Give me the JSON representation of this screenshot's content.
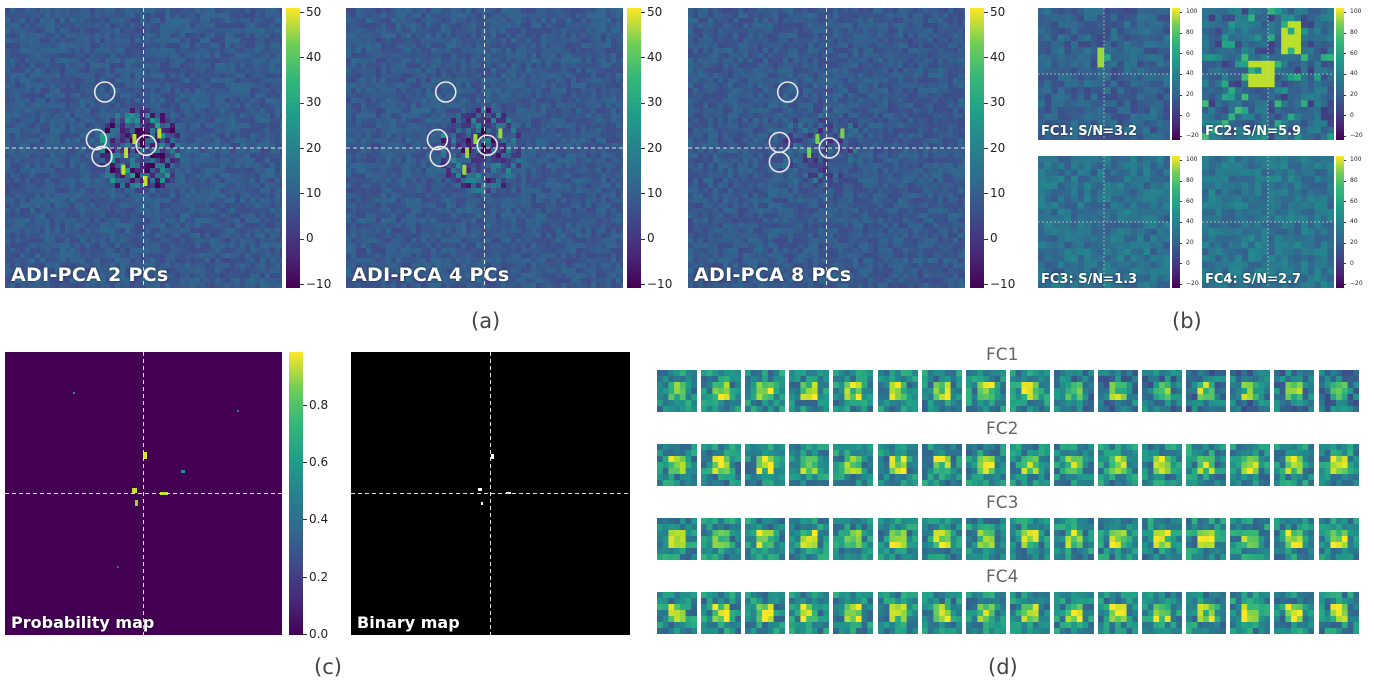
{
  "figure": {
    "panels_a": [
      {
        "label": "ADI-PCA 2 PCs",
        "circles": [
          [
            0.36,
            0.3
          ],
          [
            0.33,
            0.47
          ],
          [
            0.35,
            0.53
          ],
          [
            0.51,
            0.49
          ]
        ]
      },
      {
        "label": "ADI-PCA 4 PCs",
        "circles": [
          [
            0.36,
            0.3
          ],
          [
            0.33,
            0.47
          ],
          [
            0.34,
            0.53
          ],
          [
            0.51,
            0.49
          ]
        ]
      },
      {
        "label": "ADI-PCA 8 PCs",
        "circles": [
          [
            0.36,
            0.3
          ],
          [
            0.33,
            0.48
          ],
          [
            0.33,
            0.55
          ],
          [
            0.51,
            0.5
          ]
        ]
      }
    ],
    "colorbar_a": {
      "ticks": [
        "50",
        "40",
        "30",
        "20",
        "10",
        "0",
        "−10"
      ]
    },
    "panels_b": [
      {
        "label": "FC1: S/N=3.2"
      },
      {
        "label": "FC2: S/N=5.9"
      },
      {
        "label": "FC3: S/N=1.3"
      },
      {
        "label": "FC4: S/N=2.7"
      }
    ],
    "colorbar_b": {
      "ticks": [
        "100",
        "80",
        "60",
        "40",
        "20",
        "0",
        "−20"
      ]
    },
    "panel_c": {
      "prob_label": "Probability map",
      "binary_label": "Binary map"
    },
    "colorbar_c": {
      "ticks": [
        "0.8",
        "0.6",
        "0.4",
        "0.2",
        "0.0"
      ]
    },
    "panel_d": {
      "rows": [
        "FC1",
        "FC2",
        "FC3",
        "FC4"
      ],
      "frames_per_row": 16
    },
    "sublabels": {
      "a": "(a)",
      "b": "(b)",
      "c": "(c)",
      "d": "(d)"
    },
    "colors": {
      "viridis_dark": "#440154",
      "viridis_mid": "#21918c",
      "viridis_bright": "#fde725",
      "background_map": "#3b2a6b"
    }
  }
}
